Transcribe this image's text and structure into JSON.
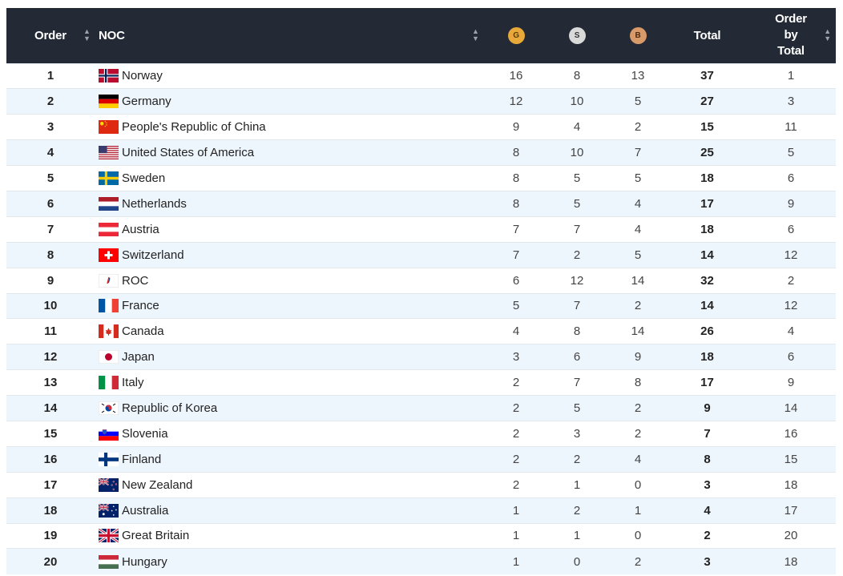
{
  "table": {
    "headers": {
      "order": "Order",
      "noc": "NOC",
      "gold": "G",
      "silver": "S",
      "bronze": "B",
      "total": "Total",
      "order_by_total": [
        "Order",
        "by",
        "Total"
      ]
    },
    "sort_icon": "sort-icon",
    "rows": [
      {
        "order": "1",
        "noc": "Norway",
        "flag": "flag-norway",
        "g": "16",
        "s": "8",
        "b": "13",
        "total": "37",
        "obt": "1"
      },
      {
        "order": "2",
        "noc": "Germany",
        "flag": "flag-germany",
        "g": "12",
        "s": "10",
        "b": "5",
        "total": "27",
        "obt": "3"
      },
      {
        "order": "3",
        "noc": "People's Republic of China",
        "flag": "flag-china",
        "g": "9",
        "s": "4",
        "b": "2",
        "total": "15",
        "obt": "11"
      },
      {
        "order": "4",
        "noc": "United States of America",
        "flag": "flag-usa",
        "g": "8",
        "s": "10",
        "b": "7",
        "total": "25",
        "obt": "5"
      },
      {
        "order": "5",
        "noc": "Sweden",
        "flag": "flag-sweden",
        "g": "8",
        "s": "5",
        "b": "5",
        "total": "18",
        "obt": "6"
      },
      {
        "order": "6",
        "noc": "Netherlands",
        "flag": "flag-netherlands",
        "g": "8",
        "s": "5",
        "b": "4",
        "total": "17",
        "obt": "9"
      },
      {
        "order": "7",
        "noc": "Austria",
        "flag": "flag-austria",
        "g": "7",
        "s": "7",
        "b": "4",
        "total": "18",
        "obt": "6"
      },
      {
        "order": "8",
        "noc": "Switzerland",
        "flag": "flag-switzerland",
        "g": "7",
        "s": "2",
        "b": "5",
        "total": "14",
        "obt": "12"
      },
      {
        "order": "9",
        "noc": "ROC",
        "flag": "flag-roc",
        "g": "6",
        "s": "12",
        "b": "14",
        "total": "32",
        "obt": "2"
      },
      {
        "order": "10",
        "noc": "France",
        "flag": "flag-france",
        "g": "5",
        "s": "7",
        "b": "2",
        "total": "14",
        "obt": "12"
      },
      {
        "order": "11",
        "noc": "Canada",
        "flag": "flag-canada",
        "g": "4",
        "s": "8",
        "b": "14",
        "total": "26",
        "obt": "4"
      },
      {
        "order": "12",
        "noc": "Japan",
        "flag": "flag-japan",
        "g": "3",
        "s": "6",
        "b": "9",
        "total": "18",
        "obt": "6"
      },
      {
        "order": "13",
        "noc": "Italy",
        "flag": "flag-italy",
        "g": "2",
        "s": "7",
        "b": "8",
        "total": "17",
        "obt": "9"
      },
      {
        "order": "14",
        "noc": "Republic of Korea",
        "flag": "flag-korea",
        "g": "2",
        "s": "5",
        "b": "2",
        "total": "9",
        "obt": "14"
      },
      {
        "order": "15",
        "noc": "Slovenia",
        "flag": "flag-slovenia",
        "g": "2",
        "s": "3",
        "b": "2",
        "total": "7",
        "obt": "16"
      },
      {
        "order": "16",
        "noc": "Finland",
        "flag": "flag-finland",
        "g": "2",
        "s": "2",
        "b": "4",
        "total": "8",
        "obt": "15"
      },
      {
        "order": "17",
        "noc": "New Zealand",
        "flag": "flag-new-zealand",
        "g": "2",
        "s": "1",
        "b": "0",
        "total": "3",
        "obt": "18"
      },
      {
        "order": "18",
        "noc": "Australia",
        "flag": "flag-australia",
        "g": "1",
        "s": "2",
        "b": "1",
        "total": "4",
        "obt": "17"
      },
      {
        "order": "19",
        "noc": "Great Britain",
        "flag": "flag-great-britain",
        "g": "1",
        "s": "1",
        "b": "0",
        "total": "2",
        "obt": "20"
      },
      {
        "order": "20",
        "noc": "Hungary",
        "flag": "flag-hungary",
        "g": "1",
        "s": "0",
        "b": "2",
        "total": "3",
        "obt": "18"
      }
    ]
  },
  "colors": {
    "header_bg": "#232a35",
    "row_alt_bg": "#eef6fd",
    "gold": "#e8a93a",
    "silver": "#d9d9d9",
    "bronze": "#d99a6a"
  }
}
